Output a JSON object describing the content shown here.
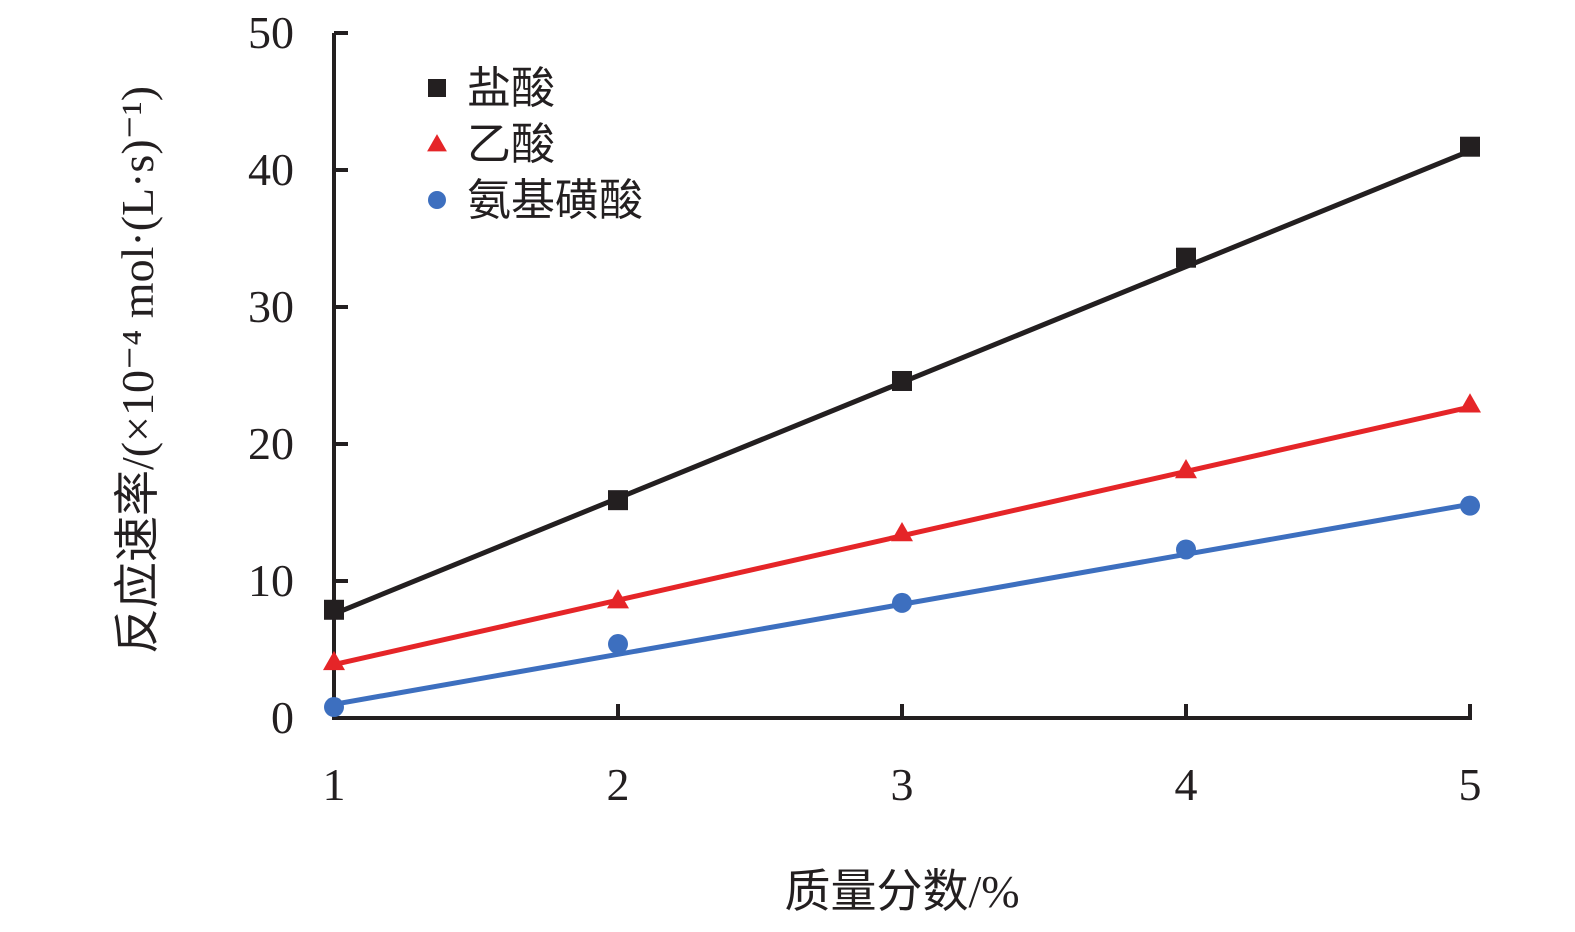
{
  "chart_data": {
    "type": "scatter",
    "title": "",
    "xlabel": "质量分数/%",
    "ylabel": "反应速率/(×10⁻⁴ mol·(L·s)⁻¹)",
    "xlim": [
      1,
      5
    ],
    "ylim": [
      0,
      50
    ],
    "x_ticks": [
      "1",
      "2",
      "3",
      "4",
      "5"
    ],
    "y_ticks": [
      "0",
      "10",
      "20",
      "30",
      "40",
      "50"
    ],
    "grid": false,
    "legend_position": "top-left",
    "series": [
      {
        "name": "盐酸",
        "color": "#231f20",
        "marker": "square",
        "x": [
          1,
          2,
          3,
          4,
          5
        ],
        "y": [
          7.9,
          15.9,
          24.6,
          33.6,
          41.7
        ],
        "fit": [
          [
            1,
            7.6
          ],
          [
            5,
            41.4
          ]
        ]
      },
      {
        "name": "乙酸",
        "color": "#e52528",
        "marker": "triangle",
        "x": [
          1,
          2,
          3,
          4,
          5
        ],
        "y": [
          4.1,
          8.6,
          13.5,
          18.1,
          22.9
        ],
        "fit": [
          [
            1,
            3.9
          ],
          [
            5,
            22.7
          ]
        ]
      },
      {
        "name": "氨基磺酸",
        "color": "#3d6fbf",
        "marker": "circle",
        "x": [
          1,
          2,
          3,
          4,
          5
        ],
        "y": [
          0.8,
          5.4,
          8.4,
          12.3,
          15.5
        ],
        "fit": [
          [
            1,
            1.0
          ],
          [
            5,
            15.6
          ]
        ]
      }
    ]
  }
}
